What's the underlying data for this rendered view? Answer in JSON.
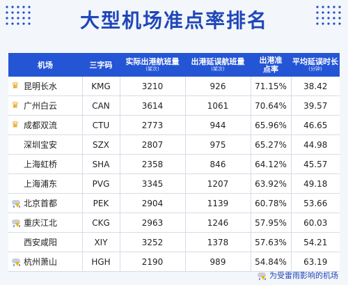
{
  "title": "大型机场准点率排名",
  "headers": {
    "airport": "机场",
    "code": "三字码",
    "actual": "实际出港航班量",
    "actual_sub": "(架次)",
    "delayed": "出港延误航班量",
    "delayed_sub": "(架次)",
    "ontime": "出港准点率",
    "avg_delay": "平均延误时长",
    "avg_delay_sub": "(分钟)"
  },
  "rows": [
    {
      "mark": "crown",
      "name": "昆明长水",
      "code": "KMG",
      "actual": "3210",
      "delayed": "926",
      "ontime": "71.15%",
      "avg": "38.42"
    },
    {
      "mark": "crown",
      "name": "广州白云",
      "code": "CAN",
      "actual": "3614",
      "delayed": "1061",
      "ontime": "70.64%",
      "avg": "39.57"
    },
    {
      "mark": "crown",
      "name": "成都双流",
      "code": "CTU",
      "actual": "2773",
      "delayed": "944",
      "ontime": "65.96%",
      "avg": "46.65"
    },
    {
      "mark": "none",
      "name": "深圳宝安",
      "code": "SZX",
      "actual": "2807",
      "delayed": "975",
      "ontime": "65.27%",
      "avg": "44.98"
    },
    {
      "mark": "none",
      "name": "上海虹桥",
      "code": "SHA",
      "actual": "2358",
      "delayed": "846",
      "ontime": "64.12%",
      "avg": "45.57"
    },
    {
      "mark": "none",
      "name": "上海浦东",
      "code": "PVG",
      "actual": "3345",
      "delayed": "1207",
      "ontime": "63.92%",
      "avg": "49.18"
    },
    {
      "mark": "storm",
      "name": "北京首都",
      "code": "PEK",
      "actual": "2904",
      "delayed": "1139",
      "ontime": "60.78%",
      "avg": "53.66"
    },
    {
      "mark": "storm",
      "name": "重庆江北",
      "code": "CKG",
      "actual": "2963",
      "delayed": "1246",
      "ontime": "57.95%",
      "avg": "60.03"
    },
    {
      "mark": "none",
      "name": "西安咸阳",
      "code": "XIY",
      "actual": "3252",
      "delayed": "1378",
      "ontime": "57.63%",
      "avg": "54.21"
    },
    {
      "mark": "storm",
      "name": "杭州萧山",
      "code": "HGH",
      "actual": "2190",
      "delayed": "989",
      "ontime": "54.84%",
      "avg": "63.19"
    }
  ],
  "legend": "为受雷雨影响的机场",
  "icons": {
    "crown": "crown-icon",
    "storm": "thunderstorm-icon"
  },
  "colors": {
    "accent": "#2455d4",
    "title": "#1f47b8",
    "crown": "#e6a21c"
  }
}
